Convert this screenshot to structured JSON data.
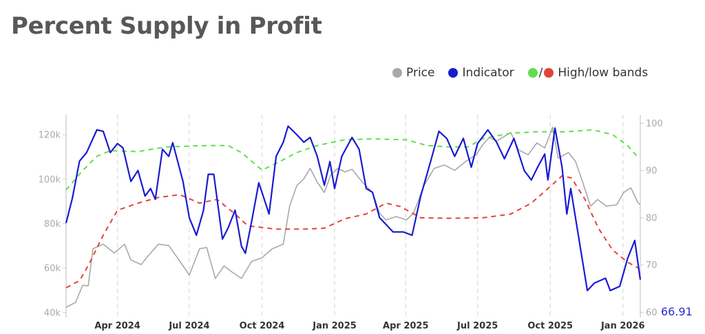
{
  "title": "Percent Supply in Profit",
  "legend": {
    "price": "Price",
    "indicator": "Indicator",
    "slash": "/",
    "bands": "High/low bands"
  },
  "colors": {
    "price": "#a8a8a8",
    "indicator": "#1a1ad2",
    "high_band": "#5ee04a",
    "low_band": "#e0443a",
    "axis_text": "#aaaaaa"
  },
  "chart_data": {
    "type": "line",
    "title": "Percent Supply in Profit",
    "grid": "vertical dashed at x ticks",
    "legend_placement": "top-right",
    "x_range": [
      "2024-01-27",
      "2026-01-23"
    ],
    "x_ticks": [
      {
        "date": "2024-04-01",
        "label": "Apr 2024"
      },
      {
        "date": "2024-07-01",
        "label": "Jul 2024"
      },
      {
        "date": "2024-10-01",
        "label": "Oct 2024"
      },
      {
        "date": "2025-01-01",
        "label": "Jan 2025"
      },
      {
        "date": "2025-04-01",
        "label": "Apr 2025"
      },
      {
        "date": "2025-07-01",
        "label": "Jul 2025"
      },
      {
        "date": "2025-10-01",
        "label": "Oct 2025"
      },
      {
        "date": "2026-01-01",
        "label": "Jan 2026"
      }
    ],
    "y_left": {
      "range": [
        37800,
        129000
      ],
      "ticks": [
        40000,
        60000,
        80000,
        100000,
        120000
      ],
      "tick_labels": [
        "40k",
        "60k",
        "80k",
        "100k",
        "120k"
      ]
    },
    "y_right": {
      "range": [
        58.9,
        101.8
      ],
      "ticks": [
        60,
        70,
        80,
        90,
        100
      ],
      "tick_labels": [
        "60",
        "70",
        "80",
        "90",
        "100"
      ]
    },
    "last_value_label": "66.91",
    "series": [
      {
        "name": "Price",
        "axis": "left",
        "style": "solid",
        "points": [
          [
            "2024-01-27",
            42400
          ],
          [
            "2024-02-08",
            44600
          ],
          [
            "2024-02-17",
            52300
          ],
          [
            "2024-02-24",
            52000
          ],
          [
            "2024-03-01",
            68700
          ],
          [
            "2024-03-14",
            70800
          ],
          [
            "2024-03-28",
            66800
          ],
          [
            "2024-04-10",
            70800
          ],
          [
            "2024-04-18",
            63700
          ],
          [
            "2024-05-01",
            61600
          ],
          [
            "2024-05-10",
            65600
          ],
          [
            "2024-05-23",
            70800
          ],
          [
            "2024-06-05",
            70200
          ],
          [
            "2024-06-19",
            63100
          ],
          [
            "2024-07-01",
            56900
          ],
          [
            "2024-07-14",
            68700
          ],
          [
            "2024-07-23",
            69300
          ],
          [
            "2024-08-03",
            55400
          ],
          [
            "2024-08-14",
            61000
          ],
          [
            "2024-08-23",
            58500
          ],
          [
            "2024-09-05",
            55400
          ],
          [
            "2024-09-18",
            63100
          ],
          [
            "2024-10-01",
            64700
          ],
          [
            "2024-10-14",
            68700
          ],
          [
            "2024-10-28",
            70800
          ],
          [
            "2024-11-05",
            87900
          ],
          [
            "2024-11-14",
            97100
          ],
          [
            "2024-11-23",
            100200
          ],
          [
            "2024-12-01",
            104900
          ],
          [
            "2024-12-10",
            98700
          ],
          [
            "2024-12-19",
            94000
          ],
          [
            "2024-12-27",
            101800
          ],
          [
            "2025-01-05",
            104900
          ],
          [
            "2025-01-14",
            103300
          ],
          [
            "2025-01-23",
            104500
          ],
          [
            "2025-02-05",
            98700
          ],
          [
            "2025-02-18",
            94000
          ],
          [
            "2025-02-27",
            84800
          ],
          [
            "2025-03-07",
            81700
          ],
          [
            "2025-03-20",
            83200
          ],
          [
            "2025-04-02",
            81700
          ],
          [
            "2025-04-11",
            84800
          ],
          [
            "2025-04-24",
            97100
          ],
          [
            "2025-05-07",
            104900
          ],
          [
            "2025-05-20",
            106400
          ],
          [
            "2025-06-02",
            104000
          ],
          [
            "2025-06-16",
            108000
          ],
          [
            "2025-06-29",
            111000
          ],
          [
            "2025-07-08",
            115700
          ],
          [
            "2025-07-16",
            118800
          ],
          [
            "2025-07-25",
            117200
          ],
          [
            "2025-08-12",
            121000
          ],
          [
            "2025-08-22",
            113200
          ],
          [
            "2025-09-03",
            111000
          ],
          [
            "2025-09-14",
            116300
          ],
          [
            "2025-09-24",
            114100
          ],
          [
            "2025-10-04",
            123400
          ],
          [
            "2025-10-11",
            109500
          ],
          [
            "2025-10-24",
            112000
          ],
          [
            "2025-11-02",
            108000
          ],
          [
            "2025-11-11",
            98700
          ],
          [
            "2025-11-21",
            87900
          ],
          [
            "2025-11-30",
            90900
          ],
          [
            "2025-12-11",
            87900
          ],
          [
            "2025-12-24",
            88500
          ],
          [
            "2026-01-02",
            94000
          ],
          [
            "2026-01-11",
            96200
          ],
          [
            "2026-01-20",
            89500
          ],
          [
            "2026-01-23",
            88500
          ]
        ]
      },
      {
        "name": "Indicator",
        "axis": "right",
        "style": "solid",
        "points": [
          [
            "2024-01-27",
            78.9
          ],
          [
            "2024-02-04",
            84.2
          ],
          [
            "2024-02-13",
            92.0
          ],
          [
            "2024-02-22",
            93.8
          ],
          [
            "2024-03-06",
            98.6
          ],
          [
            "2024-03-14",
            98.3
          ],
          [
            "2024-03-23",
            93.8
          ],
          [
            "2024-04-01",
            95.7
          ],
          [
            "2024-04-08",
            94.8
          ],
          [
            "2024-04-18",
            87.7
          ],
          [
            "2024-04-27",
            90.0
          ],
          [
            "2024-05-06",
            84.6
          ],
          [
            "2024-05-13",
            86.2
          ],
          [
            "2024-05-19",
            83.9
          ],
          [
            "2024-05-28",
            94.5
          ],
          [
            "2024-06-05",
            93.0
          ],
          [
            "2024-06-10",
            95.9
          ],
          [
            "2024-06-23",
            87.7
          ],
          [
            "2024-07-01",
            80.0
          ],
          [
            "2024-07-10",
            76.3
          ],
          [
            "2024-07-19",
            81.6
          ],
          [
            "2024-07-25",
            89.2
          ],
          [
            "2024-08-01",
            89.2
          ],
          [
            "2024-08-12",
            75.5
          ],
          [
            "2024-08-19",
            77.8
          ],
          [
            "2024-08-28",
            81.6
          ],
          [
            "2024-09-05",
            74.0
          ],
          [
            "2024-09-10",
            72.5
          ],
          [
            "2024-09-18",
            79.3
          ],
          [
            "2024-09-27",
            87.4
          ],
          [
            "2024-10-01",
            85.4
          ],
          [
            "2024-10-10",
            80.8
          ],
          [
            "2024-10-19",
            93.0
          ],
          [
            "2024-10-28",
            96.0
          ],
          [
            "2024-11-03",
            99.4
          ],
          [
            "2024-11-14",
            97.6
          ],
          [
            "2024-11-23",
            96.0
          ],
          [
            "2024-12-01",
            97.0
          ],
          [
            "2024-12-10",
            93.0
          ],
          [
            "2024-12-19",
            86.9
          ],
          [
            "2024-12-26",
            91.9
          ],
          [
            "2025-01-01",
            86.2
          ],
          [
            "2025-01-10",
            93.0
          ],
          [
            "2025-01-23",
            97.0
          ],
          [
            "2025-02-01",
            94.5
          ],
          [
            "2025-02-10",
            86.2
          ],
          [
            "2025-02-18",
            85.4
          ],
          [
            "2025-02-27",
            80.0
          ],
          [
            "2025-03-07",
            78.6
          ],
          [
            "2025-03-16",
            77.0
          ],
          [
            "2025-03-29",
            77.0
          ],
          [
            "2025-04-09",
            76.3
          ],
          [
            "2025-04-20",
            84.6
          ],
          [
            "2025-05-03",
            92.2
          ],
          [
            "2025-05-13",
            98.3
          ],
          [
            "2025-05-23",
            96.8
          ],
          [
            "2025-06-02",
            93.0
          ],
          [
            "2025-06-13",
            96.8
          ],
          [
            "2025-06-23",
            90.7
          ],
          [
            "2025-07-01",
            95.7
          ],
          [
            "2025-07-14",
            98.6
          ],
          [
            "2025-07-25",
            96.0
          ],
          [
            "2025-08-04",
            92.5
          ],
          [
            "2025-08-16",
            96.8
          ],
          [
            "2025-08-29",
            90.0
          ],
          [
            "2025-09-07",
            88.0
          ],
          [
            "2025-09-15",
            90.7
          ],
          [
            "2025-09-24",
            93.5
          ],
          [
            "2025-09-28",
            88.0
          ],
          [
            "2025-10-07",
            99.0
          ],
          [
            "2025-10-16",
            90.7
          ],
          [
            "2025-10-22",
            80.8
          ],
          [
            "2025-10-27",
            86.2
          ],
          [
            "2025-11-07",
            74.8
          ],
          [
            "2025-11-17",
            64.6
          ],
          [
            "2025-11-26",
            66.2
          ],
          [
            "2025-12-10",
            67.2
          ],
          [
            "2025-12-16",
            64.6
          ],
          [
            "2025-12-28",
            65.5
          ],
          [
            "2026-01-07",
            71.4
          ],
          [
            "2026-01-16",
            75.2
          ],
          [
            "2026-01-23",
            66.91
          ]
        ]
      },
      {
        "name": "High band",
        "axis": "right",
        "style": "dashed",
        "points": [
          [
            "2024-01-27",
            85.9
          ],
          [
            "2024-02-17",
            90.0
          ],
          [
            "2024-03-06",
            93.0
          ],
          [
            "2024-03-23",
            94.2
          ],
          [
            "2024-04-27",
            94.0
          ],
          [
            "2024-06-01",
            95.0
          ],
          [
            "2024-07-23",
            95.3
          ],
          [
            "2024-08-19",
            95.3
          ],
          [
            "2024-09-05",
            93.8
          ],
          [
            "2024-10-01",
            90.1
          ],
          [
            "2024-10-19",
            91.5
          ],
          [
            "2024-11-14",
            93.8
          ],
          [
            "2024-12-10",
            95.3
          ],
          [
            "2025-01-14",
            96.5
          ],
          [
            "2025-02-18",
            96.7
          ],
          [
            "2025-04-02",
            96.5
          ],
          [
            "2025-04-28",
            95.3
          ],
          [
            "2025-05-24",
            95.0
          ],
          [
            "2025-06-19",
            95.0
          ],
          [
            "2025-07-08",
            96.8
          ],
          [
            "2025-08-12",
            97.9
          ],
          [
            "2025-09-15",
            98.2
          ],
          [
            "2025-10-20",
            98.2
          ],
          [
            "2025-11-24",
            98.6
          ],
          [
            "2025-12-19",
            97.6
          ],
          [
            "2026-01-07",
            95.3
          ],
          [
            "2026-01-19",
            93.0
          ]
        ]
      },
      {
        "name": "Low band",
        "axis": "right",
        "style": "dashed",
        "points": [
          [
            "2024-01-27",
            65.2
          ],
          [
            "2024-02-13",
            66.7
          ],
          [
            "2024-02-25",
            70.2
          ],
          [
            "2024-03-14",
            76.3
          ],
          [
            "2024-04-01",
            81.6
          ],
          [
            "2024-04-27",
            83.1
          ],
          [
            "2024-05-23",
            84.3
          ],
          [
            "2024-06-19",
            84.9
          ],
          [
            "2024-07-14",
            83.1
          ],
          [
            "2024-08-05",
            83.9
          ],
          [
            "2024-08-28",
            80.8
          ],
          [
            "2024-09-13",
            78.3
          ],
          [
            "2024-10-19",
            77.6
          ],
          [
            "2024-11-23",
            77.6
          ],
          [
            "2024-12-19",
            77.8
          ],
          [
            "2025-01-14",
            79.8
          ],
          [
            "2025-02-10",
            80.8
          ],
          [
            "2025-03-07",
            83.1
          ],
          [
            "2025-03-25",
            82.4
          ],
          [
            "2025-04-20",
            80.0
          ],
          [
            "2025-05-24",
            79.9
          ],
          [
            "2025-07-08",
            80.0
          ],
          [
            "2025-08-12",
            80.8
          ],
          [
            "2025-09-07",
            83.1
          ],
          [
            "2025-10-03",
            86.9
          ],
          [
            "2025-10-16",
            88.9
          ],
          [
            "2025-10-28",
            88.4
          ],
          [
            "2025-11-14",
            83.9
          ],
          [
            "2025-12-01",
            77.8
          ],
          [
            "2025-12-19",
            73.2
          ],
          [
            "2026-01-07",
            70.6
          ],
          [
            "2026-01-20",
            69.4
          ]
        ]
      }
    ]
  }
}
